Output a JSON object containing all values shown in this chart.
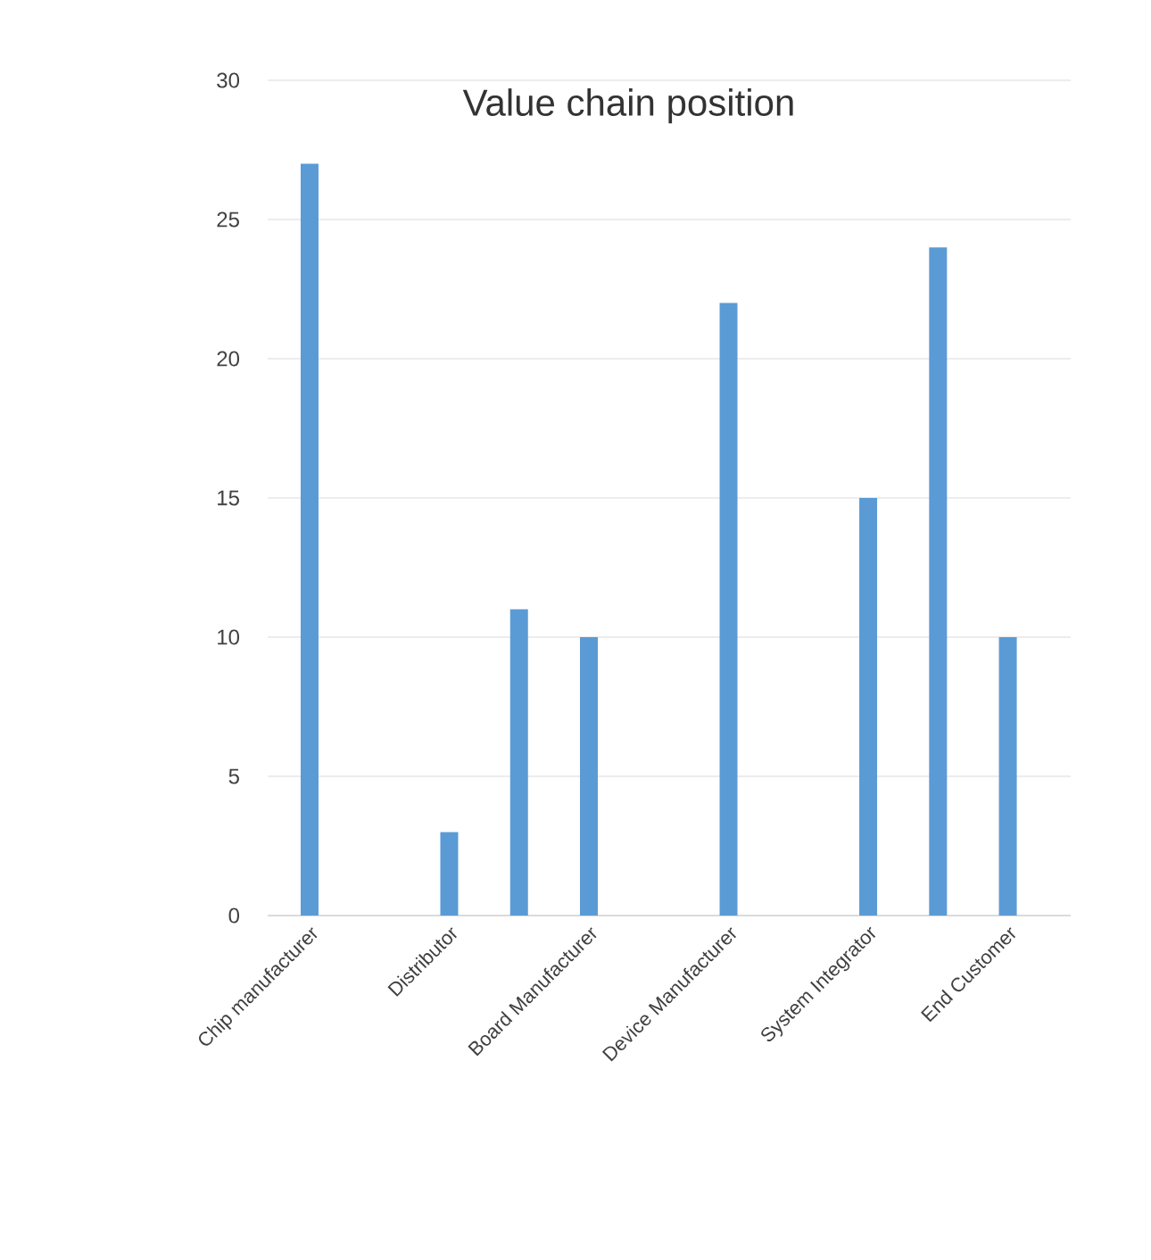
{
  "chart_data": {
    "type": "bar",
    "title": "Value chain position",
    "categories": [
      "Chip manufacturer",
      null,
      "Distributor",
      null,
      "Board Manufacturer",
      null,
      "Device Manufacturer",
      null,
      "System Integrator",
      null,
      "End Customer"
    ],
    "values": [
      27,
      null,
      3,
      11,
      10,
      null,
      22,
      null,
      15,
      24,
      10
    ],
    "color": "#5b9bd5",
    "ylim": [
      0,
      30
    ],
    "yticks": [
      0,
      5,
      10,
      15,
      20,
      25,
      30
    ],
    "grid": "y"
  }
}
